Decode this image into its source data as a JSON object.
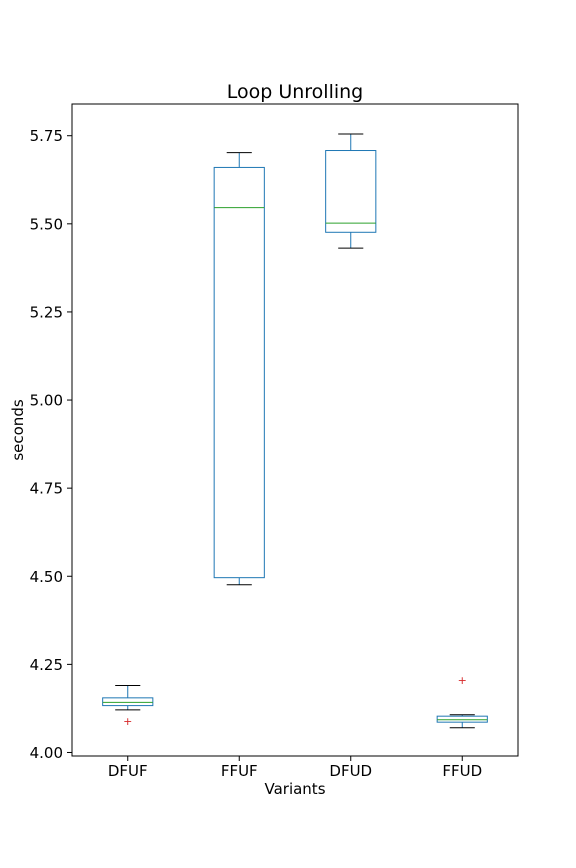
{
  "chart_data": {
    "type": "box",
    "title": "Loop Unrolling",
    "xlabel": "Variants",
    "ylabel": "seconds",
    "ylim": [
      3.99,
      5.84
    ],
    "yticks": [
      4.0,
      4.25,
      4.5,
      4.75,
      5.0,
      5.25,
      5.5,
      5.75
    ],
    "ytick_labels": [
      "4.00",
      "4.25",
      "4.50",
      "4.75",
      "5.00",
      "5.25",
      "5.50",
      "5.75"
    ],
    "categories": [
      "DFUF",
      "FFUF",
      "DFUD",
      "FFUD"
    ],
    "boxes": [
      {
        "label": "DFUF",
        "whisker_low": 4.121,
        "q1": 4.133,
        "median": 4.142,
        "q3": 4.155,
        "whisker_high": 4.19,
        "outliers": [
          4.09
        ]
      },
      {
        "label": "FFUF",
        "whisker_low": 4.476,
        "q1": 4.496,
        "median": 5.546,
        "q3": 5.66,
        "whisker_high": 5.702,
        "outliers": []
      },
      {
        "label": "DFUD",
        "whisker_low": 5.431,
        "q1": 5.476,
        "median": 5.502,
        "q3": 5.708,
        "whisker_high": 5.755,
        "outliers": []
      },
      {
        "label": "FFUD",
        "whisker_low": 4.07,
        "q1": 4.086,
        "median": 4.093,
        "q3": 4.103,
        "whisker_high": 4.107,
        "outliers": [
          4.205
        ]
      }
    ],
    "grid": false,
    "legend": "none",
    "colors": {
      "box": "#1f77b4",
      "median": "#2ca02c",
      "whisker": "#000000",
      "outlier": "#d62728",
      "axis": "#000000"
    }
  }
}
